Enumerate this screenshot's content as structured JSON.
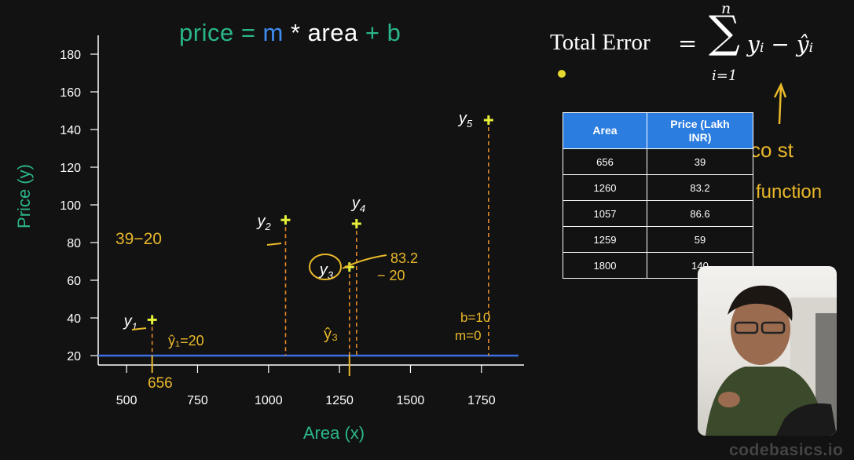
{
  "equation": {
    "price": "price",
    "eq": " = ",
    "m": "m",
    "times": " * ",
    "area": "area",
    "plus": " + ",
    "b": "b",
    "colors": {
      "price": "#2ab58a",
      "m": "#3f8cf0",
      "area": "#ffffff",
      "b": "#2ab58a"
    }
  },
  "total_error": {
    "label": "Total Error",
    "equals": "=",
    "sigma": "∑",
    "upper": "n",
    "lower": "i=1",
    "body": "yᵢ − ŷᵢ"
  },
  "table": {
    "headers": [
      "Area",
      "Price (Lakh INR)"
    ],
    "rows": [
      [
        "656",
        "39"
      ],
      [
        "1260",
        "83.2"
      ],
      [
        "1057",
        "86.6"
      ],
      [
        "1259",
        "59"
      ],
      [
        "1800",
        "140"
      ]
    ]
  },
  "annotations": {
    "cost_function_1": "co st",
    "cost_function_2": "function",
    "n39_20": "39−20",
    "y1hat": "ŷ₁=20",
    "n656": "656",
    "n832": "83.2",
    "minus20": "− 20",
    "b_m_1": "b=10",
    "b_m_2": "m=0",
    "y3hat": "ŷ₃"
  },
  "watermark": "codebasics.io",
  "chart_data": {
    "type": "scatter",
    "xlabel": "Area (x)",
    "ylabel": "Price (y)",
    "xlim": [
      400,
      1900
    ],
    "ylim": [
      15,
      190
    ],
    "xticks": [
      500,
      750,
      1000,
      1250,
      1500,
      1750
    ],
    "yticks": [
      20,
      40,
      60,
      80,
      100,
      120,
      140,
      160,
      180
    ],
    "points": [
      {
        "label": "y",
        "sub": "1",
        "x": 590,
        "y": 39
      },
      {
        "label": "y",
        "sub": "2",
        "x": 1060,
        "y": 92
      },
      {
        "label": "y",
        "sub": "3",
        "x": 1285,
        "y": 67
      },
      {
        "label": "y",
        "sub": "4",
        "x": 1310,
        "y": 90
      },
      {
        "label": "y",
        "sub": "5",
        "x": 1775,
        "y": 145
      }
    ],
    "fit_line": {
      "m": 0,
      "b": 20,
      "color": "#3b6fe0"
    },
    "colors": {
      "axis_label": "#2ab58a",
      "point": "#e6f03a",
      "residual": "#e58a2a",
      "annotation": "#e9b82a"
    }
  }
}
